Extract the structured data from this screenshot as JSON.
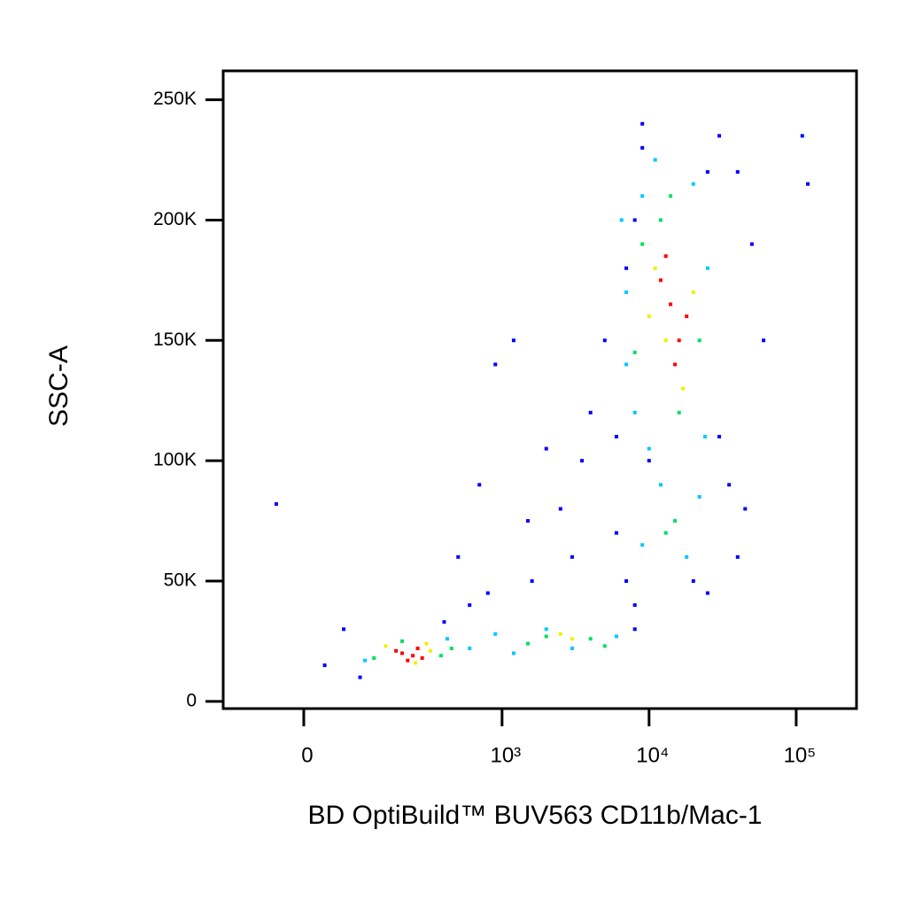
{
  "chart_data": {
    "type": "scatter",
    "xlabel": "BD OptiBuild™ BUV563 CD11b/Mac-1",
    "ylabel": "SSC-A",
    "xscale": "biexponential",
    "xlim": [
      -146,
      257000
    ],
    "xticks": [
      0,
      {
        "value": 1000,
        "label": "10³"
      },
      {
        "value": 10000,
        "label": "10⁴"
      },
      {
        "value": 100000,
        "label": "10⁵"
      }
    ],
    "ylim": [
      -3000,
      262000
    ],
    "yticks": [
      0,
      {
        "value": 50000,
        "label": "50K"
      },
      {
        "value": 100000,
        "label": "100K"
      },
      {
        "value": 150000,
        "label": "150K"
      },
      {
        "value": 200000,
        "label": "200K"
      },
      {
        "value": 250000,
        "label": "250K"
      }
    ],
    "series": [
      {
        "color": "#0000ff",
        "x": [
          30,
          60,
          90,
          500,
          700,
          900,
          1200,
          600,
          800,
          400,
          1600,
          2500,
          6000,
          8000,
          9000,
          7000,
          5000,
          30000,
          40000,
          50000,
          60000,
          4000,
          3500,
          3000,
          6000,
          7000,
          8000,
          40000,
          35000,
          30000,
          25000,
          9000,
          10000,
          20000,
          25000,
          45000,
          8000,
          110000,
          120000,
          -40,
          2000,
          1500
        ],
        "values": [
          15000,
          30000,
          10000,
          60000,
          90000,
          140000,
          150000,
          40000,
          45000,
          33000,
          50000,
          80000,
          110000,
          200000,
          230000,
          180000,
          150000,
          235000,
          220000,
          190000,
          150000,
          120000,
          100000,
          60000,
          70000,
          50000,
          40000,
          60000,
          90000,
          110000,
          220000,
          240000,
          100000,
          50000,
          45000,
          80000,
          30000,
          235000,
          215000,
          82000,
          105000,
          75000
        ]
      },
      {
        "color": "#00c8ff",
        "x": [
          100,
          420,
          600,
          900,
          1200,
          2000,
          3000,
          6000,
          7000,
          9000,
          11000,
          20000,
          25000,
          8000,
          10000,
          18000,
          22000,
          24000,
          7000,
          6500,
          9000,
          12000
        ],
        "values": [
          17000,
          26000,
          22000,
          28000,
          20000,
          30000,
          22000,
          27000,
          170000,
          210000,
          225000,
          215000,
          180000,
          120000,
          105000,
          60000,
          85000,
          110000,
          140000,
          200000,
          65000,
          90000
        ]
      },
      {
        "color": "#00e060",
        "x": [
          120,
          380,
          200,
          450,
          1500,
          2000,
          4000,
          5000,
          9000,
          22000,
          12000,
          16000,
          14000,
          8000,
          15000,
          13000
        ],
        "values": [
          18000,
          19000,
          25000,
          22000,
          24000,
          27000,
          26000,
          23000,
          190000,
          150000,
          200000,
          120000,
          210000,
          145000,
          75000,
          70000
        ]
      },
      {
        "color": "#f0f000",
        "x": [
          150,
          320,
          250,
          300,
          11000,
          20000,
          17000,
          13000,
          10000,
          3000,
          2500
        ],
        "values": [
          23000,
          21000,
          16000,
          24000,
          180000,
          170000,
          130000,
          150000,
          160000,
          26000,
          28000
        ]
      },
      {
        "color": "#ff0000",
        "x": [
          200,
          240,
          260,
          180,
          280,
          220,
          14000,
          16000,
          12000,
          18000,
          15000,
          13000
        ],
        "values": [
          20000,
          19000,
          22000,
          21000,
          18000,
          17000,
          165000,
          150000,
          175000,
          160000,
          140000,
          185000
        ]
      }
    ]
  }
}
